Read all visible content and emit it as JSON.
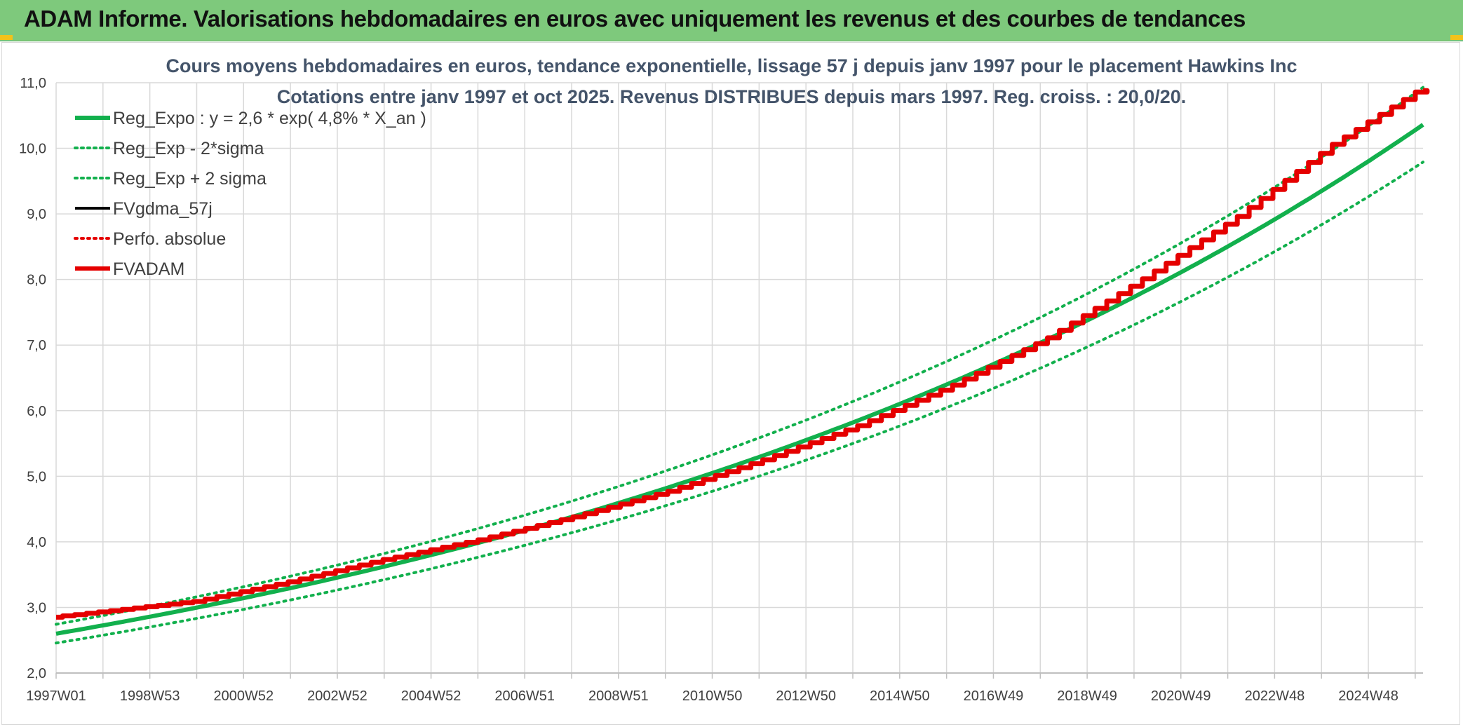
{
  "header": {
    "title": "ADAM Informe. Valorisations hebdomadaires en euros avec uniquement les revenus et des courbes de tendances"
  },
  "chart_data": {
    "type": "line",
    "title_line1": "Cours moyens hebdomadaires en euros, tendance exponentielle, lissage 57 j depuis janv 1997 pour le placement Hawkins Inc",
    "title_line2": "Cotations entre janv 1997 et oct 2025. Revenus DISTRIBUES depuis mars 1997. Reg. croiss. : 20,0/20.",
    "xlabel": "",
    "ylabel": "",
    "ylim": [
      2.0,
      11.0
    ],
    "y_ticks": [
      "11,0",
      "10,0",
      "9,0",
      "8,0",
      "7,0",
      "6,0",
      "5,0",
      "4,0",
      "3,0",
      "2,0"
    ],
    "x_range": [
      1997.0,
      2025.8
    ],
    "x_tick_labels": [
      "1997W01",
      "1998W53",
      "2000W52",
      "2002W52",
      "2004W52",
      "2006W51",
      "2008W51",
      "2010W50",
      "2012W50",
      "2014W50",
      "2016W49",
      "2018W49",
      "2020W49",
      "2022W48",
      "2024W48"
    ],
    "grid": true,
    "legend_position": "top-left",
    "trend": {
      "a": 2.6,
      "growth_rate_pct": 4.8,
      "start_year": 1997.0,
      "end_year": 2025.8,
      "sigma_factor": 0.055
    },
    "series": [
      {
        "name": "Reg_Expo : y = 2,6 * exp( 4,8% *  X_an )",
        "color": "#12b04d",
        "style": "solid",
        "width": 6,
        "x": [
          1997.0,
          2000.0,
          2005.0,
          2010.0,
          2015.0,
          2020.0,
          2025.8
        ],
        "y": [
          2.6,
          2.99,
          3.79,
          4.81,
          6.1,
          7.73,
          10.25
        ]
      },
      {
        "name": "Reg_Exp - 2*sigma",
        "color": "#12b04d",
        "style": "dotted",
        "width": 4,
        "x": [
          1997.0,
          2025.8
        ],
        "y": [
          2.46,
          9.69
        ]
      },
      {
        "name": "Reg_Exp + 2 sigma",
        "color": "#12b04d",
        "style": "dotted",
        "width": 4,
        "x": [
          1997.0,
          2025.8
        ],
        "y": [
          2.74,
          10.81
        ]
      },
      {
        "name": "FVgdma_57j",
        "color": "#000000",
        "style": "solid",
        "width": 4,
        "x": [
          1997.0,
          2000.0,
          2002.0,
          2004.0,
          2006.0,
          2008.0,
          2010.0,
          2012.0,
          2014.0,
          2016.0,
          2018.0,
          2020.0,
          2022.0,
          2024.0,
          2025.8
        ],
        "y": [
          2.84,
          3.08,
          3.38,
          3.72,
          4.02,
          4.37,
          4.76,
          5.24,
          5.76,
          6.38,
          7.1,
          8.0,
          8.95,
          10.05,
          10.87
        ]
      },
      {
        "name": "Perfo. absolue",
        "color": "#e50000",
        "style": "dotted",
        "width": 4,
        "x": [
          1997.0,
          2025.8
        ],
        "y": [
          2.84,
          10.87
        ]
      },
      {
        "name": "FVADAM",
        "color": "#e50000",
        "style": "solid",
        "width": 7,
        "x": [
          1997.0,
          2000.0,
          2002.0,
          2004.0,
          2006.0,
          2008.0,
          2010.0,
          2012.0,
          2014.0,
          2016.0,
          2018.0,
          2020.0,
          2022.0,
          2024.0,
          2025.8
        ],
        "y": [
          2.84,
          3.08,
          3.38,
          3.72,
          4.02,
          4.37,
          4.76,
          5.24,
          5.76,
          6.38,
          7.1,
          8.0,
          8.95,
          10.05,
          10.87
        ]
      }
    ]
  }
}
